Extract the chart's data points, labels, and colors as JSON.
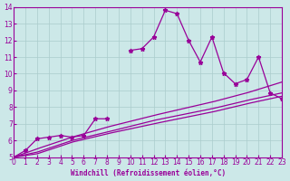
{
  "xlabel": "Windchill (Refroidissement éolien,°C)",
  "xlim": [
    0,
    23
  ],
  "ylim": [
    5,
    14
  ],
  "xticks": [
    0,
    1,
    2,
    3,
    4,
    5,
    6,
    7,
    8,
    9,
    10,
    11,
    12,
    13,
    14,
    15,
    16,
    17,
    18,
    19,
    20,
    21,
    22,
    23
  ],
  "yticks": [
    5,
    6,
    7,
    8,
    9,
    10,
    11,
    12,
    13,
    14
  ],
  "bg_color": "#cce8e8",
  "line_color": "#990099",
  "grid_color": "#aacccc",
  "series": {
    "spiky": {
      "x": [
        0,
        1,
        2,
        3,
        4,
        5,
        6,
        7,
        8,
        10,
        11,
        12,
        13,
        14,
        15,
        16,
        17,
        18,
        19,
        20,
        21,
        22,
        23
      ],
      "y": [
        5.0,
        5.4,
        6.1,
        6.2,
        6.3,
        6.2,
        6.3,
        7.3,
        7.3,
        11.4,
        11.5,
        12.2,
        13.8,
        13.6,
        12.0,
        10.7,
        12.2,
        10.05,
        9.4,
        9.65,
        11.0,
        8.85,
        8.5
      ]
    },
    "smooth1": {
      "x": [
        0,
        5,
        7,
        23
      ],
      "y": [
        5.0,
        6.3,
        6.8,
        8.65
      ]
    },
    "smooth2": {
      "x": [
        0,
        5,
        7,
        23
      ],
      "y": [
        5.0,
        6.2,
        6.55,
        8.85
      ]
    },
    "smooth3": {
      "x": [
        0,
        5,
        7,
        23
      ],
      "y": [
        5.0,
        6.1,
        6.4,
        9.5
      ]
    }
  }
}
